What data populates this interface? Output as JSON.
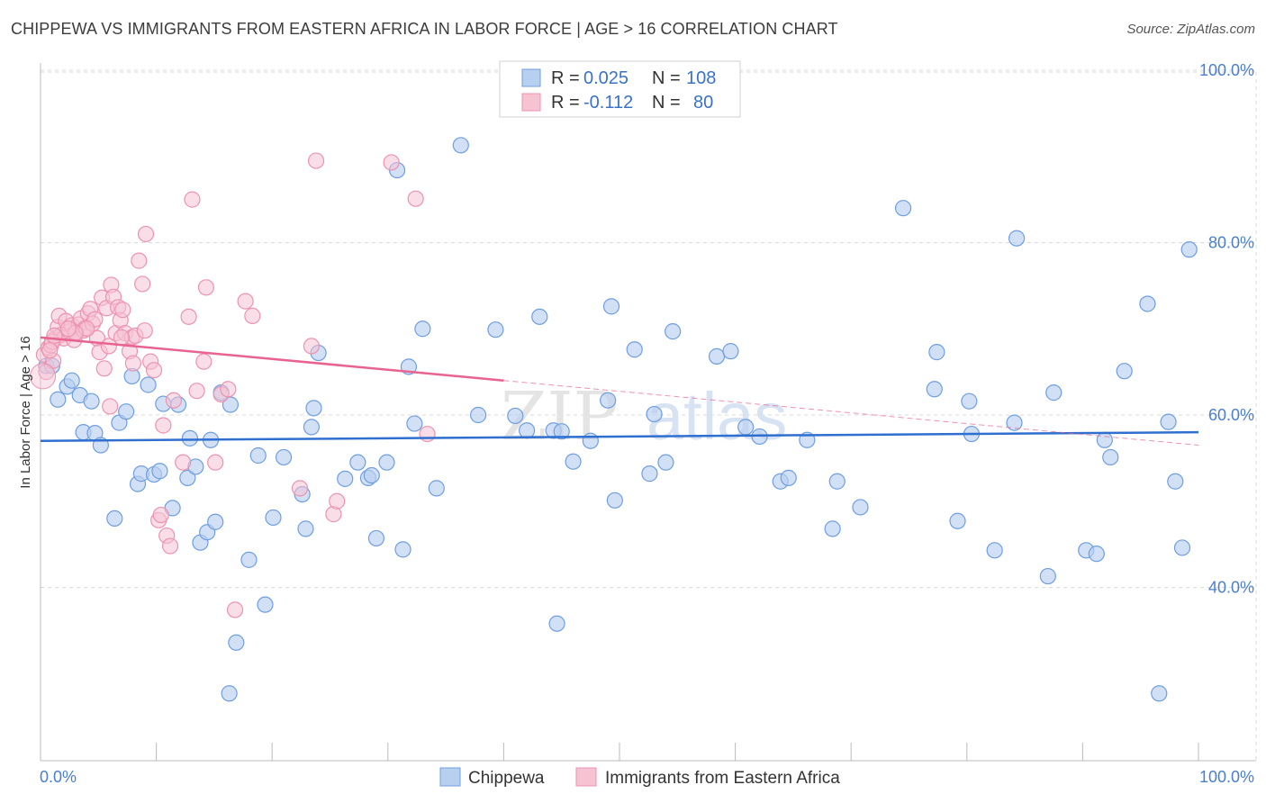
{
  "title": "CHIPPEWA VS IMMIGRANTS FROM EASTERN AFRICA IN LABOR FORCE | AGE > 16 CORRELATION CHART",
  "source": "Source: ZipAtlas.com",
  "watermark": {
    "part1": "ZIP",
    "part2": "atlas"
  },
  "colors": {
    "blue_fill": "#b8d0f0",
    "blue_stroke": "#6f9ee0",
    "blue_line": "#2f6fcf",
    "pink_fill": "#f6c3d3",
    "pink_stroke": "#ec93b0",
    "pink_line": "#e8638f",
    "tick_text": "#4a7fd0",
    "grid": "#d9d9d9"
  },
  "legend": {
    "rows": [
      {
        "r_label": "R =",
        "r_value": "0.025",
        "n_label": "N =",
        "n_value": "108"
      },
      {
        "r_label": "R =",
        "r_value": "-0.112",
        "n_label": "N =",
        "n_value": "80"
      }
    ]
  },
  "bottom_legend": [
    "Chippewa",
    "Immigrants from Eastern Africa"
  ],
  "chart_data": {
    "type": "scatter",
    "title": "CHIPPEWA VS IMMIGRANTS FROM EASTERN AFRICA IN LABOR FORCE | AGE > 16 CORRELATION CHART",
    "xlabel": "",
    "ylabel": "In Labor Force | Age > 16",
    "xlim": [
      0,
      100
    ],
    "ylim": [
      20,
      105
    ],
    "x_tick_labels": [
      "0.0%",
      "100.0%"
    ],
    "y_ticks": [
      40,
      60,
      80,
      100
    ],
    "y_tick_labels": [
      "40.0%",
      "60.0%",
      "80.0%",
      "100.0%"
    ],
    "grid": true,
    "legend_position": "top-center",
    "series": [
      {
        "name": "Chippewa",
        "R": 0.025,
        "N": 108,
        "trend": {
          "x": [
            0,
            100
          ],
          "y": [
            57.0,
            58.0
          ]
        },
        "points": [
          [
            0.5,
            65.7
          ],
          [
            1.0,
            65.7
          ],
          [
            1.5,
            61.8
          ],
          [
            2.3,
            63.3
          ],
          [
            2.7,
            64.0
          ],
          [
            3.4,
            62.3
          ],
          [
            3.7,
            58.0
          ],
          [
            4.4,
            61.6
          ],
          [
            4.7,
            57.9
          ],
          [
            5.2,
            56.5
          ],
          [
            6.4,
            48.0
          ],
          [
            6.8,
            59.1
          ],
          [
            7.4,
            60.4
          ],
          [
            7.9,
            64.5
          ],
          [
            8.4,
            52.0
          ],
          [
            8.7,
            53.2
          ],
          [
            9.3,
            63.5
          ],
          [
            9.8,
            53.1
          ],
          [
            10.3,
            53.5
          ],
          [
            10.6,
            61.3
          ],
          [
            11.4,
            49.2
          ],
          [
            11.9,
            61.2
          ],
          [
            12.7,
            52.7
          ],
          [
            12.9,
            57.3
          ],
          [
            13.4,
            54.0
          ],
          [
            13.8,
            45.2
          ],
          [
            14.4,
            46.4
          ],
          [
            14.7,
            57.1
          ],
          [
            15.1,
            47.6
          ],
          [
            15.6,
            62.6
          ],
          [
            16.4,
            61.2
          ],
          [
            16.9,
            33.6
          ],
          [
            16.3,
            27.7
          ],
          [
            18.0,
            43.2
          ],
          [
            18.8,
            55.3
          ],
          [
            19.4,
            38.0
          ],
          [
            20.1,
            48.1
          ],
          [
            21.0,
            55.1
          ],
          [
            22.6,
            50.8
          ],
          [
            22.9,
            46.8
          ],
          [
            23.4,
            58.6
          ],
          [
            23.6,
            60.8
          ],
          [
            24.0,
            67.2
          ],
          [
            26.3,
            52.6
          ],
          [
            27.4,
            54.5
          ],
          [
            28.3,
            52.7
          ],
          [
            28.6,
            53.0
          ],
          [
            29.0,
            45.7
          ],
          [
            29.9,
            54.5
          ],
          [
            30.8,
            88.4
          ],
          [
            31.3,
            44.4
          ],
          [
            31.8,
            65.6
          ],
          [
            32.3,
            59.0
          ],
          [
            33.0,
            70.0
          ],
          [
            34.2,
            51.5
          ],
          [
            36.3,
            91.3
          ],
          [
            37.8,
            60.0
          ],
          [
            39.3,
            69.9
          ],
          [
            41.0,
            59.9
          ],
          [
            42.0,
            58.2
          ],
          [
            43.1,
            71.4
          ],
          [
            44.3,
            58.2
          ],
          [
            44.6,
            35.8
          ],
          [
            45.0,
            58.1
          ],
          [
            46.0,
            54.6
          ],
          [
            47.5,
            57.0
          ],
          [
            49.0,
            61.7
          ],
          [
            49.3,
            72.6
          ],
          [
            49.6,
            50.1
          ],
          [
            51.3,
            67.6
          ],
          [
            52.6,
            53.2
          ],
          [
            53.0,
            60.1
          ],
          [
            54.0,
            54.5
          ],
          [
            54.6,
            69.7
          ],
          [
            58.4,
            66.8
          ],
          [
            59.6,
            67.4
          ],
          [
            60.9,
            58.6
          ],
          [
            62.1,
            57.5
          ],
          [
            63.9,
            52.3
          ],
          [
            64.6,
            52.7
          ],
          [
            66.2,
            57.1
          ],
          [
            68.4,
            46.8
          ],
          [
            68.8,
            52.3
          ],
          [
            70.8,
            49.3
          ],
          [
            74.5,
            84.0
          ],
          [
            77.2,
            63.0
          ],
          [
            77.4,
            67.3
          ],
          [
            79.2,
            47.7
          ],
          [
            80.2,
            61.6
          ],
          [
            80.4,
            57.8
          ],
          [
            82.4,
            44.3
          ],
          [
            84.1,
            59.1
          ],
          [
            84.3,
            80.5
          ],
          [
            87.0,
            41.3
          ],
          [
            87.5,
            62.6
          ],
          [
            90.3,
            44.3
          ],
          [
            91.2,
            43.9
          ],
          [
            91.9,
            57.1
          ],
          [
            92.4,
            55.1
          ],
          [
            93.6,
            65.1
          ],
          [
            95.6,
            72.9
          ],
          [
            96.6,
            27.7
          ],
          [
            97.4,
            59.2
          ],
          [
            98.0,
            52.3
          ],
          [
            98.6,
            44.6
          ],
          [
            99.2,
            79.2
          ]
        ]
      },
      {
        "name": "Immigrants from Eastern Africa",
        "R": -0.112,
        "N": 80,
        "trend": {
          "x": [
            0,
            40
          ],
          "y": [
            69.0,
            64.0
          ]
        },
        "trend_dashed": {
          "x": [
            40,
            100
          ],
          "y": [
            64.0,
            56.5
          ]
        },
        "points": [
          [
            0.3,
            67.0
          ],
          [
            0.5,
            65.0
          ],
          [
            0.7,
            67.8
          ],
          [
            0.9,
            68.1
          ],
          [
            1.1,
            66.3
          ],
          [
            1.3,
            68.9
          ],
          [
            1.5,
            70.2
          ],
          [
            1.6,
            71.5
          ],
          [
            1.8,
            69.3
          ],
          [
            2.0,
            68.9
          ],
          [
            2.2,
            70.9
          ],
          [
            2.5,
            69.7
          ],
          [
            2.7,
            70.4
          ],
          [
            2.9,
            68.7
          ],
          [
            3.1,
            69.6
          ],
          [
            3.3,
            70.5
          ],
          [
            3.5,
            71.2
          ],
          [
            3.7,
            69.8
          ],
          [
            3.9,
            70.1
          ],
          [
            4.1,
            71.8
          ],
          [
            4.3,
            72.3
          ],
          [
            4.5,
            70.6
          ],
          [
            4.7,
            71.1
          ],
          [
            4.9,
            68.9
          ],
          [
            5.1,
            67.3
          ],
          [
            5.3,
            73.6
          ],
          [
            5.7,
            72.4
          ],
          [
            5.9,
            68.0
          ],
          [
            6.1,
            75.1
          ],
          [
            6.3,
            73.7
          ],
          [
            6.5,
            69.5
          ],
          [
            6.7,
            72.5
          ],
          [
            6.9,
            71.0
          ],
          [
            7.1,
            72.2
          ],
          [
            7.3,
            69.5
          ],
          [
            7.7,
            67.4
          ],
          [
            7.9,
            69.0
          ],
          [
            8.2,
            69.2
          ],
          [
            8.5,
            77.9
          ],
          [
            8.8,
            75.2
          ],
          [
            9.1,
            81.0
          ],
          [
            9.5,
            66.2
          ],
          [
            9.8,
            65.2
          ],
          [
            10.2,
            47.8
          ],
          [
            10.4,
            48.4
          ],
          [
            10.6,
            58.8
          ],
          [
            10.9,
            46.0
          ],
          [
            11.2,
            44.8
          ],
          [
            11.5,
            61.7
          ],
          [
            12.3,
            54.5
          ],
          [
            12.8,
            71.4
          ],
          [
            13.1,
            85.0
          ],
          [
            13.5,
            62.8
          ],
          [
            14.1,
            66.2
          ],
          [
            14.3,
            74.8
          ],
          [
            15.1,
            54.5
          ],
          [
            15.6,
            62.4
          ],
          [
            16.2,
            63.0
          ],
          [
            16.8,
            37.4
          ],
          [
            17.7,
            73.2
          ],
          [
            18.3,
            71.5
          ],
          [
            22.4,
            51.5
          ],
          [
            23.4,
            68.0
          ],
          [
            23.8,
            89.5
          ],
          [
            25.3,
            48.5
          ],
          [
            25.6,
            50.0
          ],
          [
            30.3,
            89.3
          ],
          [
            32.4,
            85.1
          ],
          [
            33.4,
            57.8
          ],
          [
            5.5,
            65.4
          ],
          [
            4.0,
            70.0
          ],
          [
            6.0,
            61.0
          ],
          [
            7.0,
            69.0
          ],
          [
            8.0,
            66.0
          ],
          [
            9.0,
            69.8
          ],
          [
            3.0,
            69.5
          ],
          [
            2.4,
            70.0
          ],
          [
            1.0,
            68.5
          ],
          [
            1.2,
            69.2
          ],
          [
            0.8,
            67.5
          ]
        ]
      }
    ]
  }
}
